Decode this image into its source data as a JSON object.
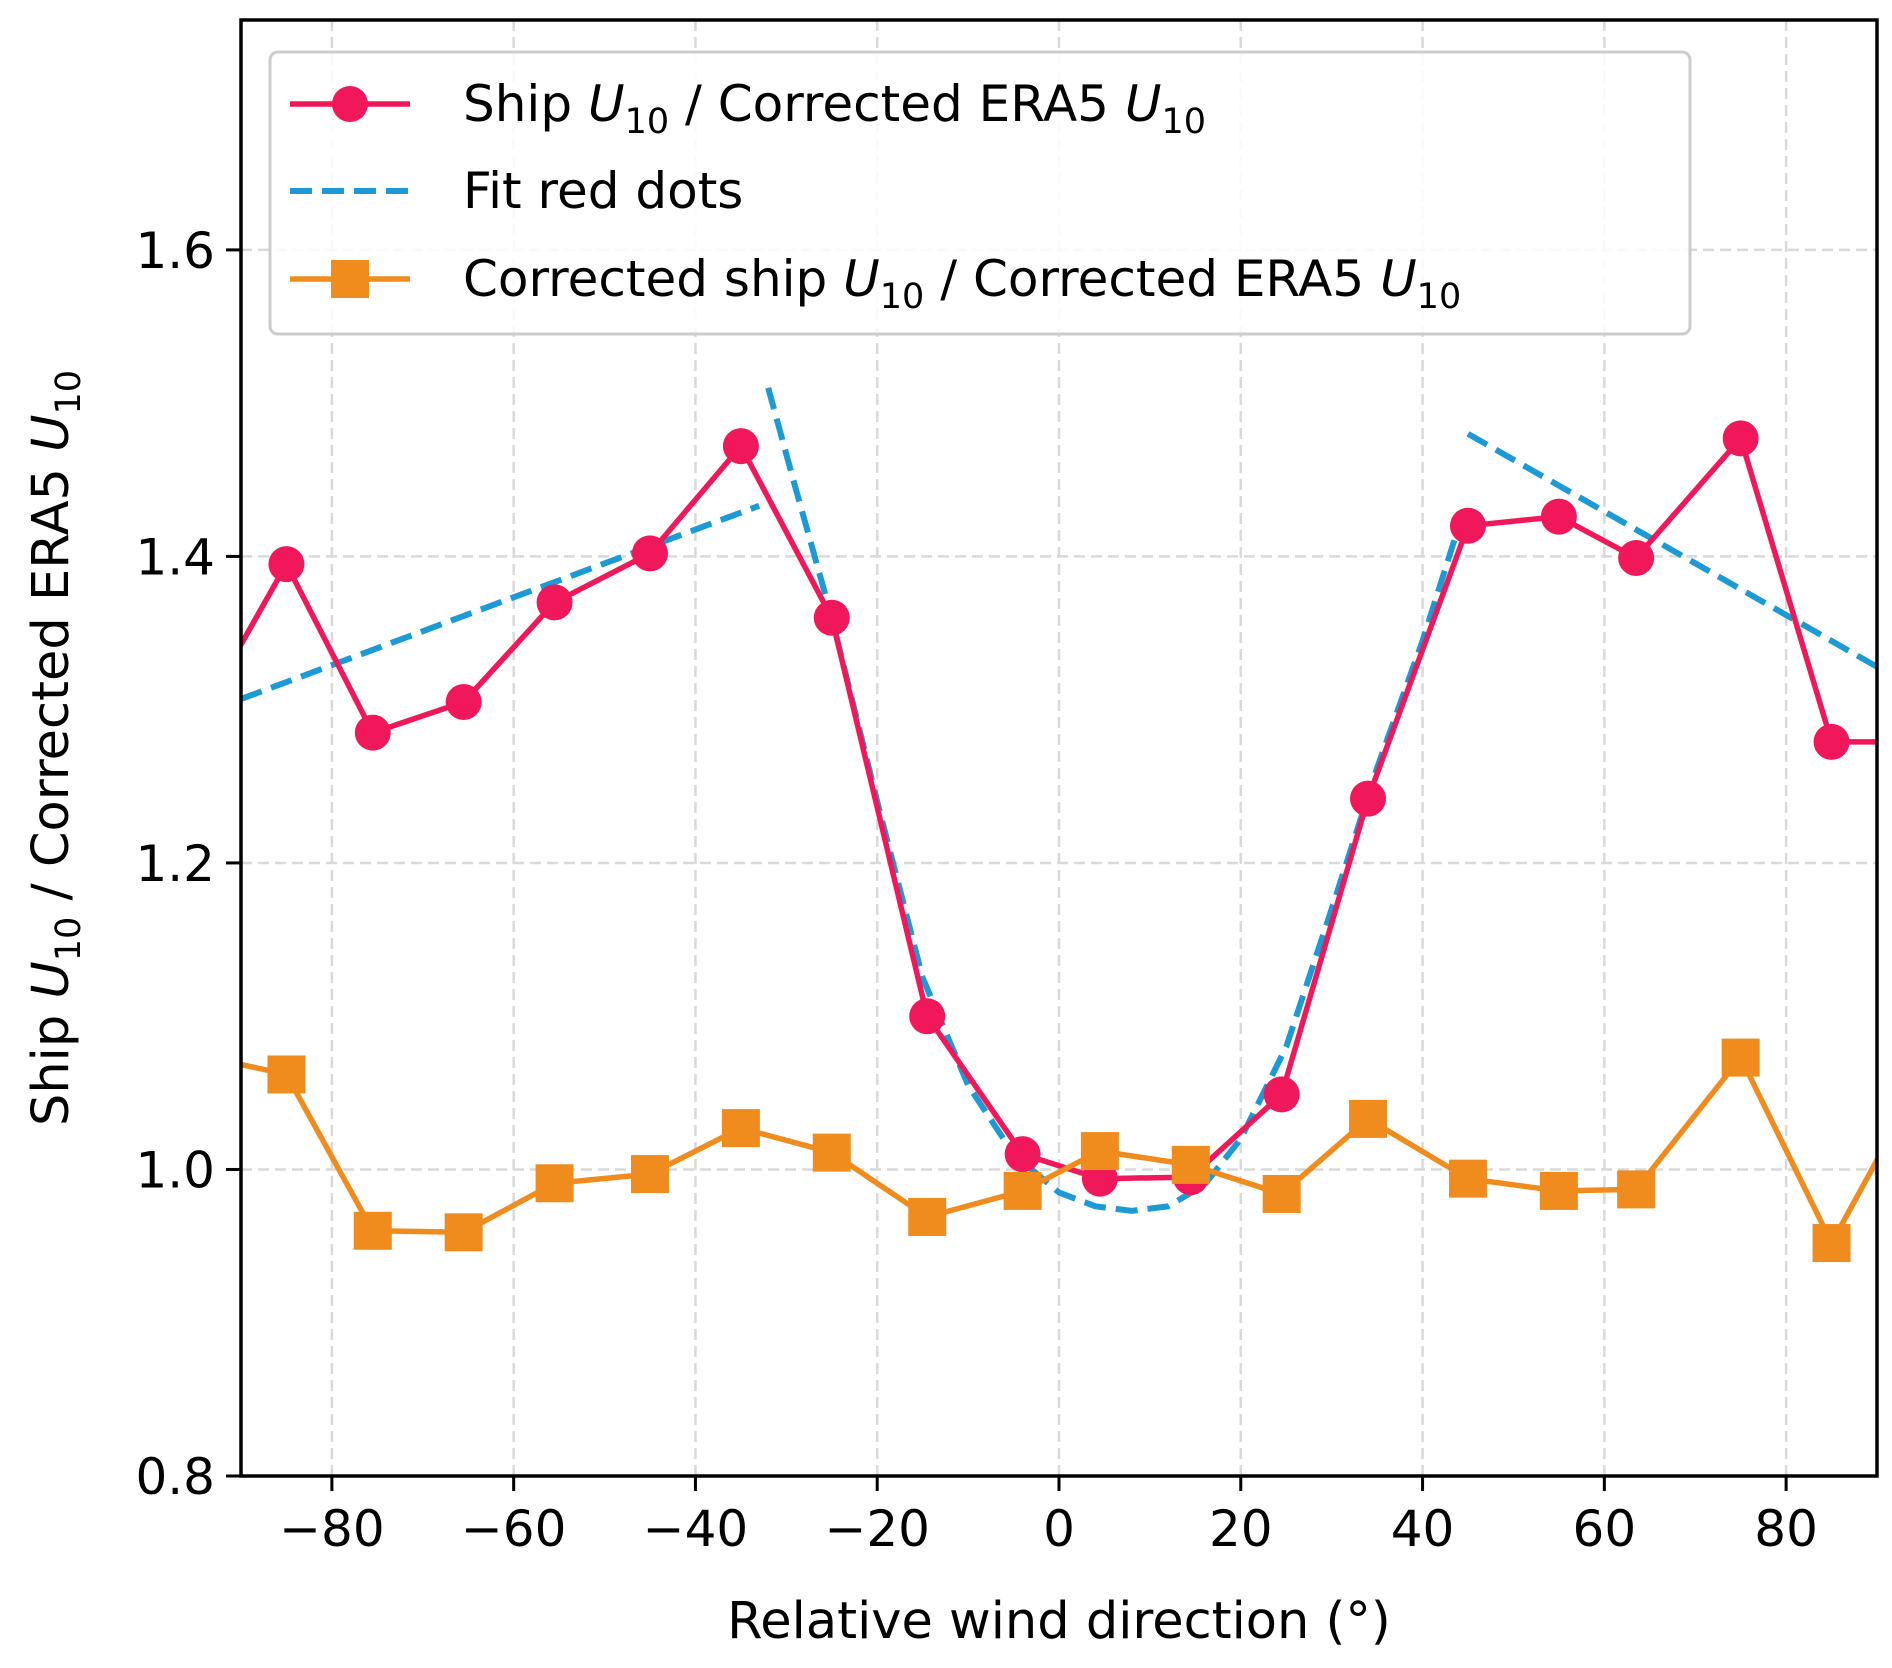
{
  "chart_data": {
    "type": "line",
    "xlabel": "Relative wind direction (°)",
    "ylabel": {
      "parts": [
        {
          "text": "Ship ",
          "style": "normal"
        },
        {
          "text": "U",
          "style": "italic"
        },
        {
          "text": "10",
          "style": "sub"
        },
        {
          "text": "  / Corrected ERA5 ",
          "style": "normal"
        },
        {
          "text": "U",
          "style": "italic"
        },
        {
          "text": "10",
          "style": "sub"
        }
      ]
    },
    "xlim": [
      -90,
      90
    ],
    "ylim": [
      0.8,
      1.75
    ],
    "xticks": [
      -80,
      -60,
      -40,
      -20,
      0,
      20,
      40,
      60,
      80
    ],
    "xtick_labels": [
      "−80",
      "−60",
      "−40",
      "−20",
      "0",
      "20",
      "40",
      "60",
      "80"
    ],
    "yticks": [
      0.8,
      1.0,
      1.2,
      1.4,
      1.6
    ],
    "ytick_labels": [
      "0.8",
      "1.0",
      "1.2",
      "1.4",
      "1.6"
    ],
    "grid": true,
    "legend_position": "top-left",
    "series": [
      {
        "name": "Ship U10 / Corrected ERA5 U10",
        "label_parts": [
          {
            "text": "Ship ",
            "style": "normal"
          },
          {
            "text": "U",
            "style": "italic"
          },
          {
            "text": "10",
            "style": "sub"
          },
          {
            "text": " / Corrected ERA5 ",
            "style": "normal"
          },
          {
            "text": "U",
            "style": "italic"
          },
          {
            "text": "10",
            "style": "sub"
          }
        ],
        "color": "#f0185a",
        "marker": "circle",
        "line": "solid",
        "points": [
          [
            -95,
            1.29
          ],
          [
            -85,
            1.395
          ],
          [
            -75.5,
            1.285
          ],
          [
            -65.5,
            1.305
          ],
          [
            -55.5,
            1.37
          ],
          [
            -45,
            1.402
          ],
          [
            -35,
            1.472
          ],
          [
            -25,
            1.36
          ],
          [
            -14.5,
            1.1
          ],
          [
            -4,
            1.01
          ],
          [
            4.5,
            0.994
          ],
          [
            14.5,
            0.995
          ],
          [
            24.5,
            1.049
          ],
          [
            34,
            1.242
          ],
          [
            45,
            1.42
          ],
          [
            55,
            1.426
          ],
          [
            63.5,
            1.399
          ],
          [
            75,
            1.477
          ],
          [
            85,
            1.279
          ],
          [
            95,
            1.279
          ]
        ]
      },
      {
        "name": "Fit red dots",
        "label_parts": [
          {
            "text": "Fit red dots",
            "style": "normal"
          }
        ],
        "color": "#1b9ad6",
        "marker": "none",
        "line": "dashed",
        "segments": [
          [
            [
              -90,
              1.307
            ],
            [
              -33,
              1.433
            ]
          ],
          [
            [
              -32,
              1.51
            ],
            [
              -29,
              1.445
            ],
            [
              -25,
              1.36
            ],
            [
              -20,
              1.24
            ],
            [
              -15,
              1.125
            ],
            [
              -10,
              1.055
            ],
            [
              -5,
              1.01
            ],
            [
              0,
              0.985
            ],
            [
              4,
              0.976
            ],
            [
              8,
              0.973
            ],
            [
              12,
              0.976
            ],
            [
              16,
              0.99
            ],
            [
              20,
              1.02
            ],
            [
              25,
              1.08
            ],
            [
              30,
              1.17
            ],
            [
              35,
              1.262
            ],
            [
              40,
              1.345
            ],
            [
              44,
              1.42
            ],
            [
              45,
              1.428
            ]
          ],
          [
            [
              45,
              1.48
            ],
            [
              90,
              1.328
            ]
          ]
        ]
      },
      {
        "name": "Corrected ship U10 / Corrected ERA5 U10",
        "label_parts": [
          {
            "text": "Corrected ship ",
            "style": "normal"
          },
          {
            "text": "U",
            "style": "italic"
          },
          {
            "text": "10",
            "style": "sub"
          },
          {
            "text": " / Corrected ERA5 ",
            "style": "normal"
          },
          {
            "text": "U",
            "style": "italic"
          },
          {
            "text": "10",
            "style": "sub"
          }
        ],
        "color": "#f08c1e",
        "marker": "square",
        "line": "solid",
        "points": [
          [
            -95,
            1.075
          ],
          [
            -85,
            1.062
          ],
          [
            -75.5,
            0.96
          ],
          [
            -65.5,
            0.959
          ],
          [
            -55.5,
            0.991
          ],
          [
            -45,
            0.997
          ],
          [
            -35,
            1.027
          ],
          [
            -25,
            1.011
          ],
          [
            -14.5,
            0.969
          ],
          [
            -4,
            0.986
          ],
          [
            4.5,
            1.012
          ],
          [
            14.5,
            1.003
          ],
          [
            24.5,
            0.984
          ],
          [
            34,
            1.033
          ],
          [
            45,
            0.994
          ],
          [
            55,
            0.986
          ],
          [
            63.5,
            0.987
          ],
          [
            75,
            1.073
          ],
          [
            85,
            0.952
          ],
          [
            95,
            1.06
          ]
        ]
      }
    ]
  }
}
